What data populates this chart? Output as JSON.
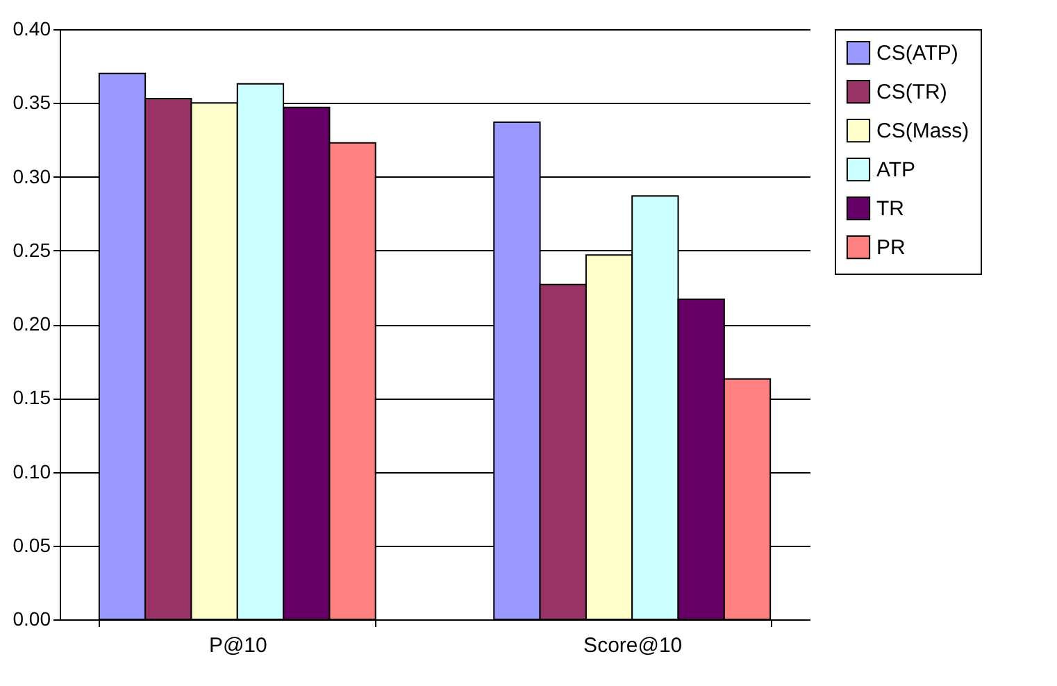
{
  "chart_data": {
    "type": "bar",
    "categories": [
      "P@10",
      "Score@10"
    ],
    "series": [
      {
        "name": "CS(ATP)",
        "color": "#9999ff",
        "values": [
          0.37,
          0.337
        ]
      },
      {
        "name": "CS(TR)",
        "color": "#993366",
        "values": [
          0.353,
          0.227
        ]
      },
      {
        "name": "CS(Mass)",
        "color": "#ffffcc",
        "values": [
          0.35,
          0.247
        ]
      },
      {
        "name": "ATP",
        "color": "#ccffff",
        "values": [
          0.363,
          0.287
        ]
      },
      {
        "name": "TR",
        "color": "#660066",
        "values": [
          0.347,
          0.217
        ]
      },
      {
        "name": "PR",
        "color": "#ff8080",
        "values": [
          0.323,
          0.163
        ]
      }
    ],
    "ylim": [
      0,
      0.4
    ],
    "yticks": [
      {
        "value": 0,
        "label": "0.00"
      },
      {
        "value": 0.05,
        "label": "0.05"
      },
      {
        "value": 0.1,
        "label": "0.10"
      },
      {
        "value": 0.15,
        "label": "0.15"
      },
      {
        "value": 0.2,
        "label": "0.20"
      },
      {
        "value": 0.25,
        "label": "0.25"
      },
      {
        "value": 0.3,
        "label": "0.30"
      },
      {
        "value": 0.35,
        "label": "0.35"
      },
      {
        "value": 0.4,
        "label": "0.40"
      }
    ],
    "grid": "y",
    "legend": "top right"
  }
}
